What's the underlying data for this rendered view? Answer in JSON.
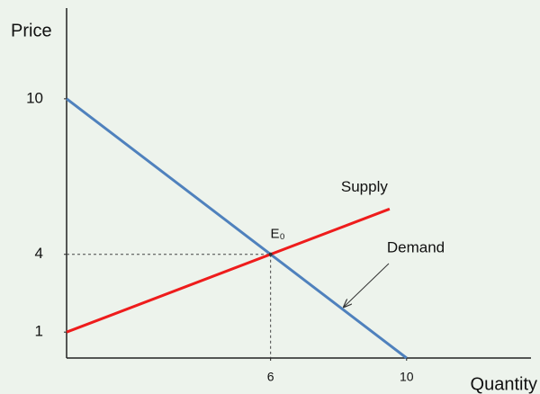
{
  "chart_data": {
    "type": "line",
    "x_label": "Quantity",
    "y_label": "Price",
    "xlim": [
      0,
      13.5
    ],
    "ylim": [
      0,
      13.5
    ],
    "xticks": [
      6,
      10
    ],
    "yticks": [
      1,
      4,
      10
    ],
    "series": [
      {
        "name": "Demand",
        "color": "#4f81bd",
        "x": [
          0,
          10
        ],
        "values": [
          10,
          0
        ]
      },
      {
        "name": "Supply",
        "color": "#ee1c1c",
        "x": [
          0,
          9.5
        ],
        "values": [
          1,
          5.75
        ]
      }
    ],
    "equilibrium": {
      "label": "E₀",
      "x": 6,
      "y": 4
    }
  }
}
